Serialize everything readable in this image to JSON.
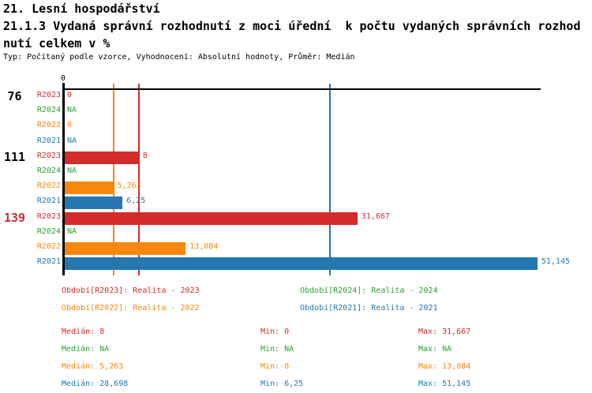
{
  "header": {
    "line1": "21. Lesní hospodářství",
    "line2": "21.1.3 Vydaná správní rozhodnutí z moci úřední  k počtu vydaných správních rozhod",
    "line3": "nutí celkem v %",
    "meta": "Typ: Počítaný podle vzorce, Vyhodnocení: Absolutní hodnoty, Průměr: Medián"
  },
  "series_colors": {
    "R2023": "#d22c2c",
    "R2024": "#2da033",
    "R2022": "#f8870e",
    "R2021": "#2677b0",
    "axis": "#000000"
  },
  "chart_data": {
    "type": "bar",
    "orientation": "horizontal",
    "title": "21.1.3 Vydaná správní rozhodnutí z moci úřední k počtu vydaných správních rozhodnutí celkem v %",
    "xlim": [
      0,
      51.6
    ],
    "x_tick_labels": [
      "0"
    ],
    "grid": false,
    "legend_position": "bottom",
    "row_order": [
      "R2023",
      "R2024",
      "R2022",
      "R2021"
    ],
    "categories": [
      "76",
      "111",
      "139"
    ],
    "category_colors": [
      "#000000",
      "#000000",
      "#d22c2c"
    ],
    "series": [
      {
        "id": "R2023",
        "name": "Realita - 2023",
        "values": [
          0,
          8,
          31.667
        ],
        "displays": [
          "0",
          "8",
          "31,667"
        ]
      },
      {
        "id": "R2024",
        "name": "Realita - 2024",
        "values": [
          null,
          null,
          null
        ],
        "displays": [
          "NA",
          "NA",
          "NA"
        ]
      },
      {
        "id": "R2022",
        "name": "Realita - 2022",
        "values": [
          0,
          5.263,
          13.084
        ],
        "displays": [
          "0",
          "5,263",
          "13,084"
        ]
      },
      {
        "id": "R2021",
        "name": "Realita - 2021",
        "values": [
          null,
          6.25,
          51.145
        ],
        "displays": [
          "NA",
          "6,25",
          "51,145"
        ]
      }
    ],
    "median_lines": [
      {
        "series": "R2022",
        "value": 5.263
      },
      {
        "series": "R2023",
        "value": 8
      },
      {
        "series": "R2021",
        "value": 28.698
      }
    ]
  },
  "legend": {
    "items": [
      {
        "series": "R2023",
        "label": "Období[R2023]: Realita - 2023"
      },
      {
        "series": "R2024",
        "label": "Období[R2024]: Realita - 2024"
      },
      {
        "series": "R2022",
        "label": "Období[R2022]: Realita - 2022"
      },
      {
        "series": "R2021",
        "label": "Období[R2021]: Realita - 2021"
      }
    ]
  },
  "stats": {
    "rows": [
      {
        "series": "R2023",
        "median": "Medián: 8",
        "min": "Min: 0",
        "max": "Max: 31,667"
      },
      {
        "series": "R2024",
        "median": "Medián: NA",
        "min": "Min: NA",
        "max": "Max: NA"
      },
      {
        "series": "R2022",
        "median": "Medián: 5,263",
        "min": "Min: 0",
        "max": "Max: 13,084"
      },
      {
        "series": "R2021",
        "median": "Medián: 28,698",
        "min": "Min: 6,25",
        "max": "Max: 51,145"
      }
    ]
  }
}
